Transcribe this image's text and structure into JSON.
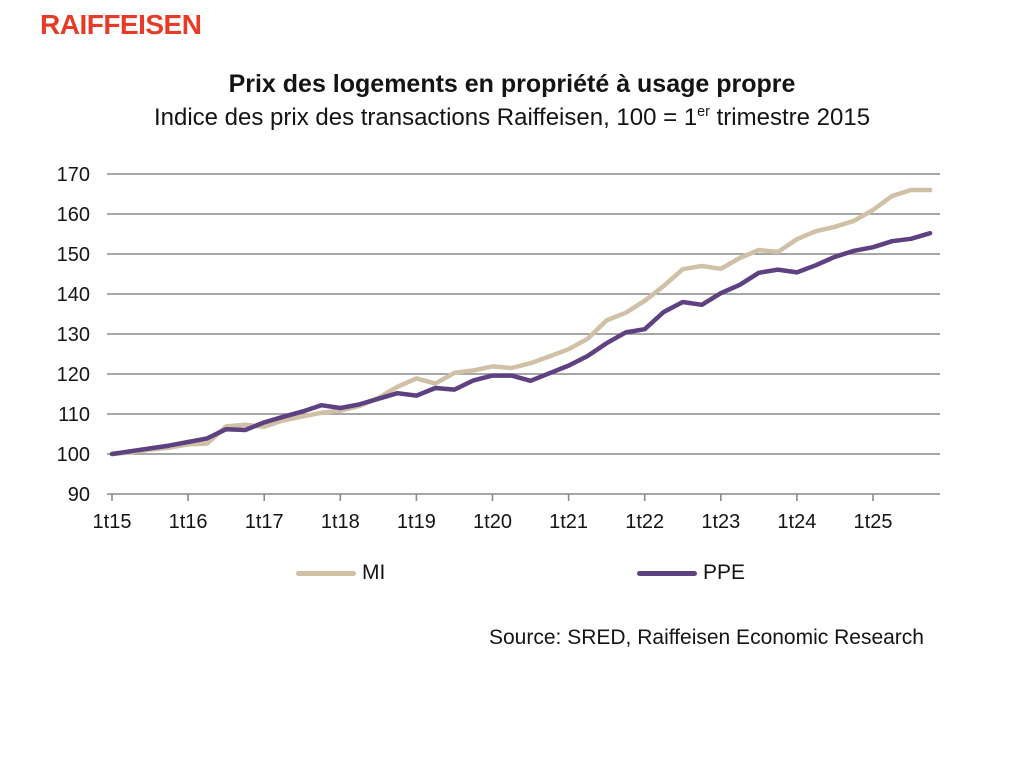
{
  "brand": {
    "logo_text": "RAIFFEISEN",
    "logo_color": "#e73b27"
  },
  "header": {
    "title": "Prix des logements en propriété à usage propre",
    "subtitle_prefix": "Indice des prix des transactions Raiffeisen, 100 = 1",
    "subtitle_superscript": "er",
    "subtitle_suffix": " trimestre 2015"
  },
  "chart_data": {
    "type": "line",
    "title": "Prix des logements en propriété à usage propre",
    "subtitle": "Indice des prix des transactions Raiffeisen, 100 = 1er trimestre 2015",
    "x_frequency": "quarterly",
    "x_start": "1t15",
    "x_end": "4t25",
    "x_tick_labels": [
      "1t15",
      "1t16",
      "1t17",
      "1t18",
      "1t19",
      "1t20",
      "1t21",
      "1t22",
      "1t23",
      "1t24",
      "1t25"
    ],
    "ylim": [
      90,
      170
    ],
    "ytick_step": 10,
    "grid": true,
    "gridline_color": "#8a8a8a",
    "legend_position": "bottom",
    "series": [
      {
        "name": "MI",
        "color": "#cfc0a6",
        "values": [
          100,
          100.4,
          101.1,
          101.6,
          102.4,
          102.6,
          106.9,
          107.3,
          106.8,
          108.4,
          109.4,
          110.3,
          110.8,
          112.0,
          114.0,
          116.8,
          118.9,
          117.6,
          120.3,
          120.9,
          121.9,
          121.5,
          122.7,
          124.4,
          126.2,
          128.8,
          133.4,
          135.3,
          138.3,
          142.0,
          146.2,
          147.0,
          146.3,
          149.0,
          151.0,
          150.5,
          153.7,
          155.7,
          156.8,
          158.3,
          161.0,
          164.5,
          166.0,
          166.0
        ]
      },
      {
        "name": "PPE",
        "color": "#5e4181",
        "values": [
          100,
          100.7,
          101.4,
          102.1,
          103.0,
          103.9,
          106.2,
          106.0,
          107.9,
          109.3,
          110.6,
          112.2,
          111.5,
          112.4,
          113.8,
          115.2,
          114.6,
          116.5,
          116.1,
          118.4,
          119.6,
          119.6,
          118.3,
          120.2,
          122.1,
          124.5,
          127.7,
          130.4,
          131.2,
          135.5,
          138.0,
          137.3,
          140.2,
          142.3,
          145.3,
          146.1,
          145.4,
          147.2,
          149.3,
          150.8,
          151.7,
          153.2,
          153.8,
          155.2
        ]
      }
    ]
  },
  "source": {
    "text": "Source: SRED, Raiffeisen Economic Research"
  }
}
